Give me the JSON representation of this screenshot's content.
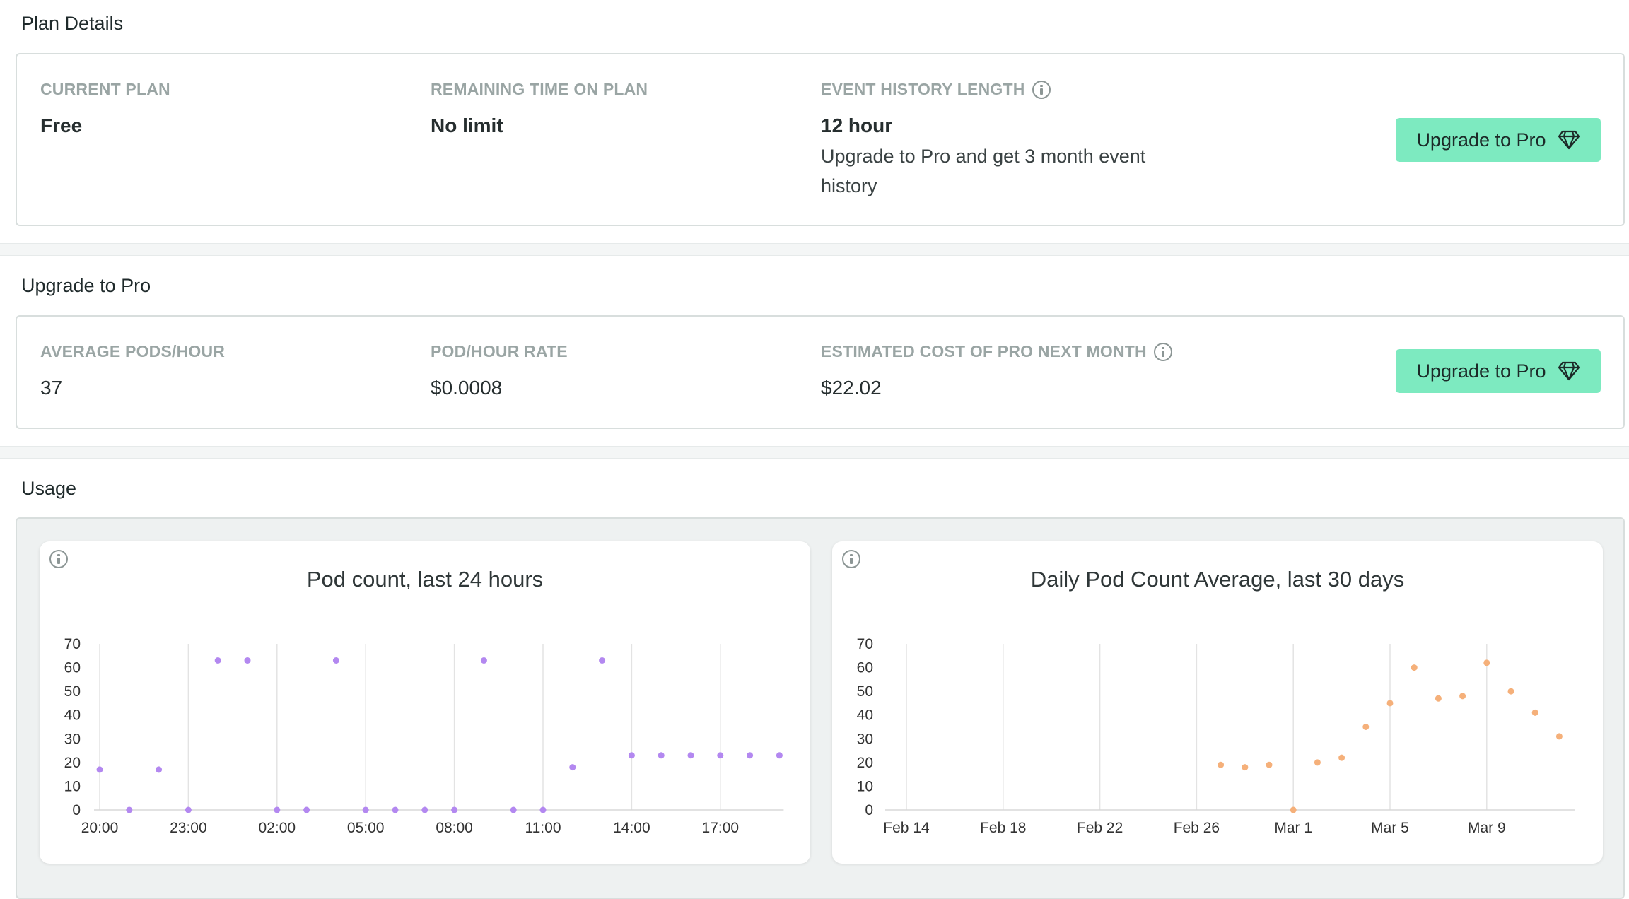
{
  "plan_details": {
    "title": "Plan Details",
    "current_plan": {
      "label": "CURRENT PLAN",
      "value": "Free"
    },
    "remaining_time": {
      "label": "REMAINING TIME ON PLAN",
      "value": "No limit"
    },
    "event_history": {
      "label": "EVENT HISTORY LENGTH",
      "value": "12 hour",
      "note": "Upgrade to Pro and get 3 month event history"
    },
    "upgrade_button": "Upgrade to Pro"
  },
  "upgrade_pro": {
    "title": "Upgrade to Pro",
    "avg_pods": {
      "label": "AVERAGE PODS/HOUR",
      "value": "37"
    },
    "rate": {
      "label": "POD/HOUR RATE",
      "value": "$0.0008"
    },
    "estimated_cost": {
      "label": "ESTIMATED COST OF PRO NEXT MONTH",
      "value": "$22.02"
    },
    "upgrade_button": "Upgrade to Pro"
  },
  "usage": {
    "title": "Usage"
  },
  "colors": {
    "accent": "#7deac0",
    "purple_points": "#b388f0",
    "orange_points": "#f5b07a"
  },
  "icons": {
    "info": "info-circle-icon",
    "upgrade": "diamond-icon"
  },
  "chart_data": [
    {
      "type": "scatter",
      "title": "Pod count, last 24 hours",
      "xlabel": "",
      "ylabel": "",
      "ylim": [
        0,
        70
      ],
      "y_ticks": [
        0,
        10,
        20,
        30,
        40,
        50,
        60,
        70
      ],
      "x_tick_labels": [
        "20:00",
        "23:00",
        "02:00",
        "05:00",
        "08:00",
        "11:00",
        "14:00",
        "17:00"
      ],
      "grid": "vertical",
      "series": [
        {
          "x": [
            "20:00",
            "21:00",
            "22:00",
            "23:00",
            "00:00",
            "01:00",
            "02:00",
            "03:00",
            "04:00",
            "05:00",
            "06:00",
            "07:00",
            "08:00",
            "09:00",
            "10:00",
            "11:00",
            "12:00",
            "13:00",
            "14:00",
            "15:00",
            "16:00",
            "17:00",
            "18:00",
            "19:00"
          ],
          "values": [
            17,
            0,
            17,
            0,
            63,
            63,
            0,
            0,
            63,
            0,
            0,
            0,
            0,
            63,
            0,
            0,
            18,
            63,
            23,
            23,
            23,
            23,
            23,
            23
          ]
        }
      ]
    },
    {
      "type": "scatter",
      "title": "Daily Pod Count Average, last 30 days",
      "xlabel": "",
      "ylabel": "",
      "ylim": [
        0,
        70
      ],
      "y_ticks": [
        0,
        10,
        20,
        30,
        40,
        50,
        60,
        70
      ],
      "x_tick_labels": [
        "Feb 14",
        "Feb 18",
        "Feb 22",
        "Feb 26",
        "Mar 1",
        "Mar 5",
        "Mar 9"
      ],
      "grid": "vertical",
      "series": [
        {
          "x": [
            "Feb 27",
            "Feb 28",
            "Feb 29",
            "Mar 1",
            "Mar 2",
            "Mar 3",
            "Mar 4",
            "Mar 5",
            "Mar 6",
            "Mar 7",
            "Mar 8",
            "Mar 9",
            "Mar 10",
            "Mar 11",
            "Mar 12"
          ],
          "values": [
            19,
            18,
            19,
            0,
            20,
            22,
            35,
            45,
            60,
            47,
            48,
            62,
            50,
            41,
            31
          ]
        }
      ]
    }
  ]
}
